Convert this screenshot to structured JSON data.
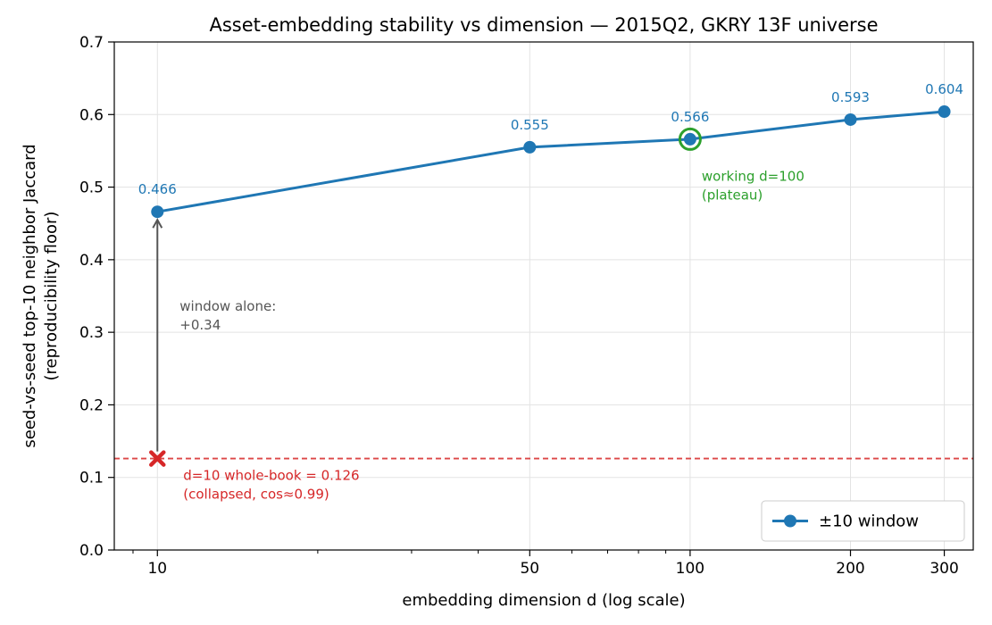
{
  "chart_data": {
    "type": "line",
    "title": "Asset-embedding stability vs dimension — 2015Q2, GKRY 13F universe",
    "xlabel": "embedding dimension  d  (log scale)",
    "ylabel_lines": [
      "seed-vs-seed top-10 neighbor Jaccard",
      "(reproducibility floor)"
    ],
    "x_scale": "log",
    "xlim": [
      8.3,
      340
    ],
    "ylim": [
      0.0,
      0.7
    ],
    "x_ticks": [
      10,
      50,
      100,
      200,
      300
    ],
    "x_tick_labels": [
      "10",
      "50",
      "100",
      "200",
      "300"
    ],
    "y_ticks": [
      0.0,
      0.1,
      0.2,
      0.3,
      0.4,
      0.5,
      0.6,
      0.7
    ],
    "y_tick_labels": [
      "0.0",
      "0.1",
      "0.2",
      "0.3",
      "0.4",
      "0.5",
      "0.6",
      "0.7"
    ],
    "grid": true,
    "legend_position": "bottom-right",
    "series": [
      {
        "name": "±10 window",
        "color": "#1f77b4",
        "x": [
          10,
          50,
          100,
          200,
          300
        ],
        "y": [
          0.466,
          0.555,
          0.566,
          0.593,
          0.604
        ],
        "labels": [
          "0.466",
          "0.555",
          "0.566",
          "0.593",
          "0.604"
        ]
      }
    ],
    "reference_line": {
      "y": 0.126,
      "color": "#d62728",
      "style": "dashed"
    },
    "baseline_point": {
      "x": 10,
      "y": 0.126,
      "marker": "X",
      "color": "#d62728"
    },
    "highlight_point": {
      "x": 100,
      "y": 0.566,
      "color": "#2ca02c"
    },
    "annotations": {
      "window_alone": {
        "lines": [
          "window alone:",
          "+0.34"
        ],
        "color": "#555555"
      },
      "working": {
        "lines": [
          "working d=100",
          "(plateau)"
        ],
        "color": "#2ca02c"
      },
      "whole_book": {
        "lines": [
          "d=10 whole-book = 0.126",
          "(collapsed, cos≈0.99)"
        ],
        "color": "#d62728"
      }
    }
  }
}
